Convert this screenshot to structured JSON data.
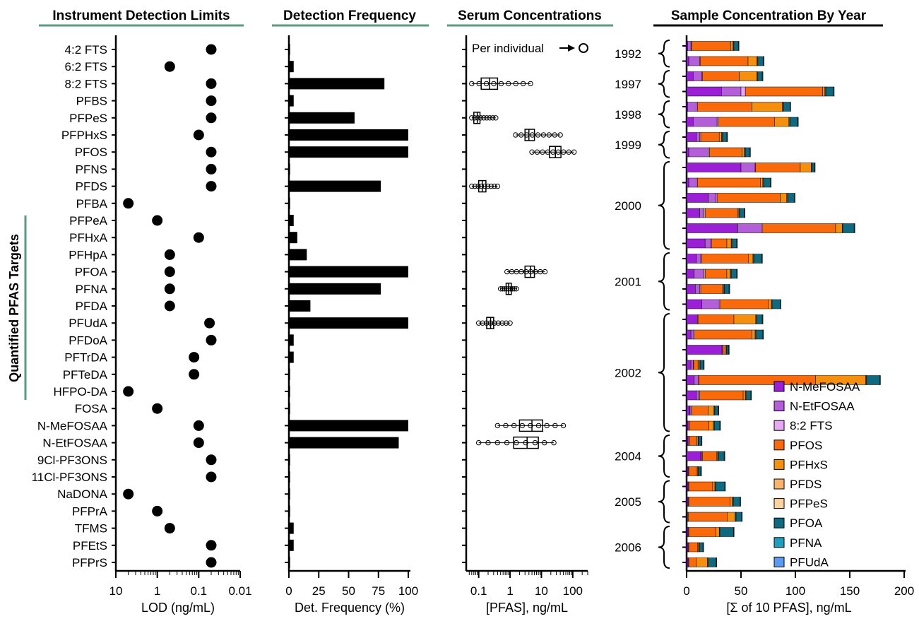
{
  "colors": {
    "title_underline_green": "#5a9e82",
    "title_underline_black": "#000000",
    "bar": "#000000",
    "bracket_green": "#5a9e82"
  },
  "targets": [
    "4:2 FTS",
    "6:2 FTS",
    "8:2 FTS",
    "PFBS",
    "PFPeS",
    "PFPHxS",
    "PFOS",
    "PFNS",
    "PFDS",
    "PFBA",
    "PFPeA",
    "PFHxA",
    "PFHpA",
    "PFOA",
    "PFNA",
    "PFDA",
    "PFUdA",
    "PFDoA",
    "PFTrDA",
    "PFTeDA",
    "HFPO-DA",
    "FOSA",
    "N-MeFOSAA",
    "N-EtFOSAA",
    "9Cl-PF3ONS",
    "11Cl-PF3ONS",
    "NaDONA",
    "PFPrA",
    "TFMS",
    "PFEtS",
    "PFPrS"
  ],
  "chart_data": [
    {
      "type": "scatter",
      "title": "Instrument Detection Limits",
      "xlabel": "LOD (ng/mL)",
      "ylabel": "",
      "group_label": "Quantified PFAS Targets",
      "group_label_rows": [
        "PFPeA",
        "HFPO-DA"
      ],
      "x_scale": "log-reversed",
      "xlim": [
        10,
        0.01
      ],
      "xticks": [
        "10",
        "1",
        "0.1",
        "0.01"
      ],
      "xtick_values": [
        10,
        1,
        0.1,
        0.01
      ],
      "categories": [
        "4:2 FTS",
        "6:2 FTS",
        "8:2 FTS",
        "PFBS",
        "PFPeS",
        "PFPHxS",
        "PFOS",
        "PFNS",
        "PFDS",
        "PFBA",
        "PFPeA",
        "PFHxA",
        "PFHpA",
        "PFOA",
        "PFNA",
        "PFDA",
        "PFUdA",
        "PFDoA",
        "PFTrDA",
        "PFTeDA",
        "HFPO-DA",
        "FOSA",
        "N-MeFOSAA",
        "N-EtFOSAA",
        "9Cl-PF3ONS",
        "11Cl-PF3ONS",
        "NaDONA",
        "PFPrA",
        "TFMS",
        "PFEtS",
        "PFPrS"
      ],
      "values": [
        0.05,
        0.5,
        0.05,
        0.05,
        0.05,
        0.1,
        0.05,
        0.05,
        0.05,
        5,
        1,
        0.1,
        0.5,
        0.5,
        0.5,
        0.5,
        0.055,
        0.05,
        0.13,
        0.13,
        5,
        1,
        0.1,
        0.1,
        0.05,
        0.05,
        5,
        1,
        0.5,
        0.05,
        0.05
      ]
    },
    {
      "type": "bar",
      "title": "Detection Frequency",
      "xlabel": "Det. Frequency (%)",
      "xlim": [
        0,
        100
      ],
      "xticks": [
        "0",
        "25",
        "50",
        "75",
        "100"
      ],
      "xtick_values": [
        0,
        25,
        50,
        75,
        100
      ],
      "categories": [
        "4:2 FTS",
        "6:2 FTS",
        "8:2 FTS",
        "PFBS",
        "PFPeS",
        "PFPHxS",
        "PFOS",
        "PFNS",
        "PFDS",
        "PFBA",
        "PFPeA",
        "PFHxA",
        "PFHpA",
        "PFOA",
        "PFNA",
        "PFDA",
        "PFUdA",
        "PFDoA",
        "PFTrDA",
        "PFTeDA",
        "HFPO-DA",
        "FOSA",
        "N-MeFOSAA",
        "N-EtFOSAA",
        "9Cl-PF3ONS",
        "11Cl-PF3ONS",
        "NaDONA",
        "PFPrA",
        "TFMS",
        "PFEtS",
        "PFPrS"
      ],
      "values": [
        1,
        4,
        80,
        4,
        55,
        100,
        100,
        1,
        77,
        1,
        4,
        7,
        15,
        100,
        77,
        18,
        100,
        4,
        4,
        1,
        1,
        1,
        100,
        92,
        1,
        1,
        1,
        1,
        4,
        4,
        1
      ]
    },
    {
      "type": "box",
      "title": "Serum Concentrations",
      "xlabel": "[PFAS], ng/mL",
      "annotation": "Per individual",
      "x_scale": "log",
      "xlim": [
        0.04,
        300
      ],
      "xticks": [
        "0.1",
        "1",
        "10",
        "100"
      ],
      "xtick_values": [
        0.1,
        1,
        10,
        100
      ],
      "boxes": [
        {
          "target": "8:2 FTS",
          "min": 0.06,
          "q1": 0.12,
          "median": 0.22,
          "q3": 0.4,
          "max": 4.5
        },
        {
          "target": "PFPeS",
          "min": 0.06,
          "q1": 0.07,
          "median": 0.09,
          "q3": 0.11,
          "max": 0.35
        },
        {
          "target": "PFPHxS",
          "min": 1.5,
          "q1": 3,
          "median": 4,
          "q3": 6,
          "max": 40
        },
        {
          "target": "PFOS",
          "min": 5,
          "q1": 18,
          "median": 28,
          "q3": 42,
          "max": 110
        },
        {
          "target": "PFDS",
          "min": 0.06,
          "q1": 0.1,
          "median": 0.13,
          "q3": 0.17,
          "max": 0.4
        },
        {
          "target": "PFOA",
          "min": 0.8,
          "q1": 3,
          "median": 4.5,
          "q3": 6,
          "max": 13
        },
        {
          "target": "PFNA",
          "min": 0.5,
          "q1": 0.75,
          "median": 0.9,
          "q3": 1.1,
          "max": 1.6
        },
        {
          "target": "PFUdA",
          "min": 0.1,
          "q1": 0.18,
          "median": 0.24,
          "q3": 0.3,
          "max": 1
        },
        {
          "target": "N-MeFOSAA",
          "min": 0.4,
          "q1": 2,
          "median": 5,
          "q3": 11,
          "max": 50
        },
        {
          "target": "N-EtFOSAA",
          "min": 0.1,
          "q1": 1.3,
          "median": 3.5,
          "q3": 8,
          "max": 25
        }
      ]
    },
    {
      "type": "bar",
      "stacked": true,
      "orientation": "horizontal",
      "title": "Sample Concentration By Year",
      "xlabel": "[Σ of 10 PFAS], ng/mL",
      "xlim": [
        0,
        200
      ],
      "xticks": [
        "0",
        "50",
        "100",
        "150",
        "200"
      ],
      "xtick_values": [
        0,
        50,
        100,
        150,
        200
      ],
      "legend_position": "lower-right",
      "year_groups": [
        {
          "year": "1992",
          "first": 0,
          "last": 1
        },
        {
          "year": "1997",
          "first": 2,
          "last": 3
        },
        {
          "year": "1998",
          "first": 4,
          "last": 5
        },
        {
          "year": "1999",
          "first": 6,
          "last": 7
        },
        {
          "year": "2000",
          "first": 8,
          "last": 13
        },
        {
          "year": "2001",
          "first": 14,
          "last": 17
        },
        {
          "year": "2002",
          "first": 18,
          "last": 25
        },
        {
          "year": "2004",
          "first": 26,
          "last": 28
        },
        {
          "year": "2005",
          "first": 29,
          "last": 31
        },
        {
          "year": "2006",
          "first": 32,
          "last": 34
        }
      ],
      "series": [
        {
          "name": "N-MeFOSAA",
          "color": "#9b1fd6",
          "values": [
            1,
            2,
            6,
            32,
            1,
            6,
            9,
            2,
            50,
            2,
            20,
            12,
            47,
            17,
            9,
            7,
            8,
            14,
            9,
            4,
            32,
            4,
            7,
            9,
            3,
            1,
            1,
            13,
            1,
            1,
            1,
            0.5,
            1,
            1,
            1
          ]
        },
        {
          "name": "N-EtFOSAA",
          "color": "#b45fd9",
          "values": [
            3,
            10,
            8,
            18,
            8,
            22,
            3,
            18,
            13,
            7,
            7,
            4,
            22,
            5,
            4,
            9,
            4,
            16,
            1,
            2,
            1,
            2,
            4,
            2,
            1,
            1,
            1,
            1,
            0.5,
            0.5,
            0.5,
            0.5,
            0.5,
            0.5,
            0.5
          ]
        },
        {
          "name": "8:2 FTS",
          "color": "#e6a8f0",
          "values": [
            0.5,
            0.5,
            0.5,
            4,
            1,
            1,
            1,
            1,
            0.5,
            1,
            1,
            1,
            1,
            1,
            1,
            1,
            1,
            1,
            0.5,
            1,
            0.5,
            0.5,
            0.5,
            1,
            1,
            0.5,
            0.5,
            0.5,
            0.5,
            0.5,
            0.5,
            0.5,
            0.5,
            0.5,
            0.5
          ]
        },
        {
          "name": "PFOS",
          "color": "#fb6a0a",
          "values": [
            36,
            44,
            34,
            71,
            50,
            52,
            17,
            30,
            41,
            58,
            58,
            30,
            67,
            14,
            43,
            20,
            20,
            44,
            33,
            53,
            2,
            4,
            107,
            40,
            15,
            18,
            7,
            13,
            7,
            22,
            38,
            36,
            25,
            8,
            7
          ]
        },
        {
          "name": "PFHxS",
          "color": "#f68e0e",
          "values": [
            2,
            8,
            16,
            2,
            28,
            13,
            2,
            2,
            10,
            2,
            6,
            1,
            6,
            4,
            4,
            3,
            1,
            3,
            20,
            3,
            1,
            1,
            46,
            2,
            5,
            4,
            1,
            1,
            1,
            2,
            2,
            7,
            3,
            1,
            10
          ]
        },
        {
          "name": "PFDS",
          "color": "#f8b36c",
          "values": [
            0.5,
            0.5,
            0.5,
            0.5,
            0.5,
            0.5,
            0.5,
            0.5,
            0.5,
            0.5,
            0.5,
            0.5,
            0.5,
            0.5,
            0.5,
            0.5,
            0.5,
            0.5,
            0.5,
            0.5,
            0.5,
            0.5,
            0.5,
            0.5,
            0.5,
            0.5,
            0.5,
            0.5,
            0.5,
            0.5,
            0.5,
            0.5,
            0.5,
            0.5,
            0.5
          ]
        },
        {
          "name": "PFPeS",
          "color": "#fbd3a3",
          "values": [
            0.5,
            0.5,
            0.5,
            0.5,
            0.5,
            0.5,
            0.5,
            0.5,
            0.5,
            0.5,
            0.5,
            0.5,
            0.5,
            0.5,
            0.5,
            0.5,
            0.5,
            0.5,
            0.5,
            0.5,
            0.5,
            0.5,
            0.5,
            0.5,
            0.5,
            0.5,
            0.5,
            0.5,
            0.5,
            0.5,
            0.5,
            0.5,
            0.5,
            0.5,
            0.5
          ]
        },
        {
          "name": "PFOA",
          "color": "#0f6a80",
          "values": [
            4,
            5,
            4,
            7,
            6,
            7,
            4,
            4,
            2,
            6,
            6,
            4,
            10,
            4,
            7,
            5,
            4,
            7,
            5,
            6,
            1,
            3,
            12,
            4,
            3,
            5,
            2,
            5,
            2,
            8,
            6,
            5,
            12,
            3,
            7
          ]
        },
        {
          "name": "PFNA",
          "color": "#1e9fbf",
          "values": [
            0.5,
            0.5,
            0.5,
            0.5,
            0.5,
            0.5,
            0.5,
            0.5,
            0.5,
            0.5,
            0.5,
            0.5,
            0.5,
            0.5,
            0.5,
            0.5,
            0.5,
            0.5,
            0.5,
            0.5,
            0.5,
            0.5,
            0.5,
            0.5,
            0.5,
            0.5,
            0.5,
            0.5,
            0.5,
            0.5,
            0.5,
            0.5,
            0.5,
            0.5,
            0.5
          ]
        },
        {
          "name": "PFUdA",
          "color": "#5b9cf2",
          "values": [
            0.2,
            0.2,
            0.2,
            0.2,
            0.2,
            0.2,
            0.2,
            0.2,
            0.2,
            0.2,
            0.2,
            0.2,
            0.2,
            0.2,
            0.2,
            0.2,
            0.2,
            0.2,
            0.2,
            0.2,
            0.2,
            0.2,
            0.2,
            0.2,
            0.2,
            0.2,
            0.2,
            0.2,
            0.2,
            0.2,
            0.2,
            0.2,
            0.2,
            0.2,
            0.2
          ]
        }
      ]
    }
  ]
}
